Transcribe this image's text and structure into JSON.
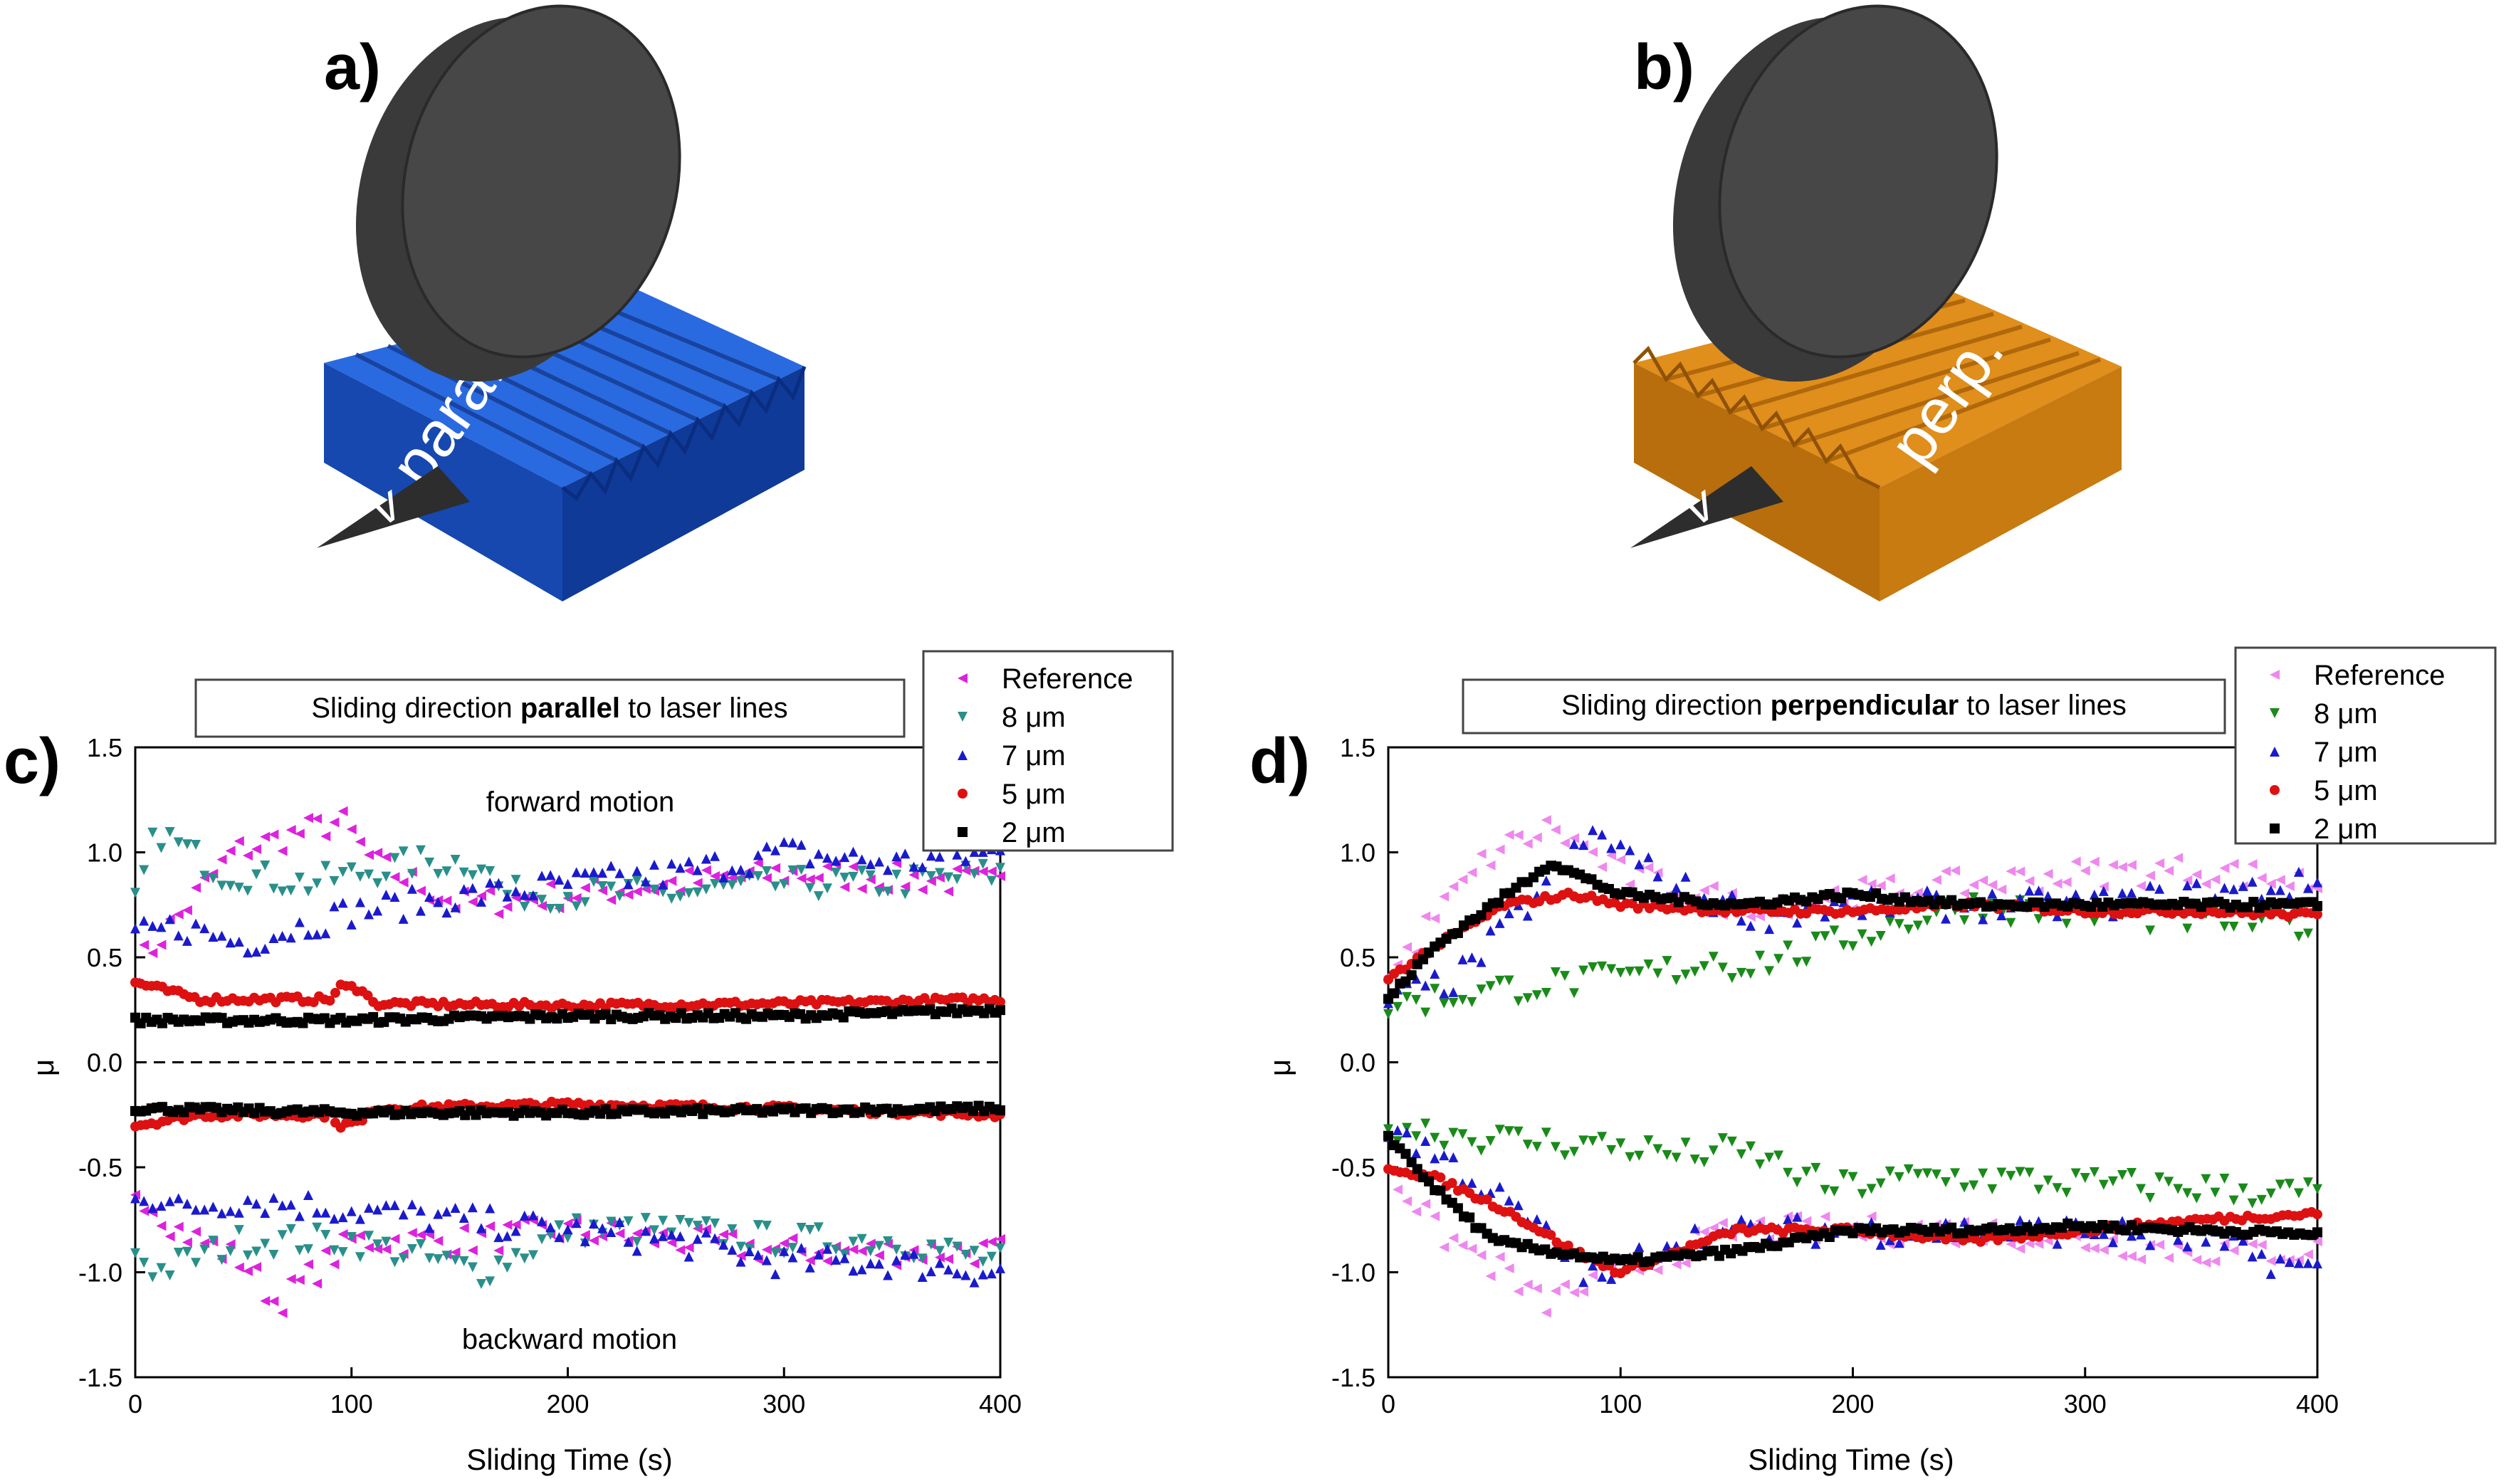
{
  "panels": {
    "a": {
      "letter": "a)",
      "sample_label": "para.",
      "surface_color": "#1f5fd0",
      "arrow_glyph": "v"
    },
    "b": {
      "letter": "b)",
      "sample_label": "perp.",
      "surface_color": "#d9840f",
      "arrow_glyph": "v"
    },
    "c": {
      "letter": "c)"
    },
    "d": {
      "letter": "d)"
    }
  },
  "colors": {
    "reference_c": "#dd22dd",
    "reference_d": "#ee88ee",
    "um8_c": "#2a8f8a",
    "um8_d": "#1a8a1a",
    "um7": "#1a1acc",
    "um5": "#dd1111",
    "um2": "#000000"
  },
  "chart_data": [
    {
      "id": "c",
      "type": "scatter",
      "title_parts": [
        "Sliding direction ",
        "parallel",
        " to laser lines"
      ],
      "xlabel": "Sliding Time (s)",
      "ylabel": "μ",
      "xlim": [
        0,
        400
      ],
      "ylim": [
        -1.5,
        1.5
      ],
      "xticks": [
        "0",
        "100",
        "200",
        "300",
        "400"
      ],
      "yticks": [
        "1.5",
        "1.0",
        "0.5",
        "0.0",
        "-0.5",
        "-1.0",
        "-1.5"
      ],
      "zero_line": "dashed",
      "annotations": [
        "forward motion",
        "backward motion"
      ],
      "legend": {
        "placement": "top-right outside",
        "entries": [
          "Reference",
          "8 μm",
          "7 μm",
          "5 μm",
          "2 μm"
        ]
      },
      "series": [
        {
          "name": "Reference",
          "marker": "triangle-left",
          "color_key": "reference_c",
          "x_end": [
            0,
            100,
            150,
            200,
            300,
            340,
            400
          ],
          "forward": [
            [
              0,
              0.45
            ],
            [
              20,
              0.7
            ],
            [
              45,
              1.0
            ],
            [
              95,
              1.15
            ],
            [
              110,
              0.95
            ],
            [
              150,
              0.75
            ],
            [
              200,
              0.8
            ],
            [
              250,
              0.85
            ],
            [
              300,
              0.9
            ],
            [
              350,
              0.88
            ],
            [
              400,
              0.85
            ]
          ],
          "backward": [
            [
              0,
              -0.6
            ],
            [
              20,
              -0.8
            ],
            [
              50,
              -0.95
            ],
            [
              65,
              -1.15
            ],
            [
              100,
              -0.85
            ],
            [
              150,
              -0.85
            ],
            [
              200,
              -0.8
            ],
            [
              250,
              -0.85
            ],
            [
              300,
              -0.9
            ],
            [
              350,
              -0.9
            ],
            [
              400,
              -0.9
            ]
          ]
        },
        {
          "name": "8 μm",
          "marker": "triangle-down",
          "color_key": "um8_c",
          "forward": [
            [
              0,
              0.75
            ],
            [
              10,
              1.1
            ],
            [
              40,
              0.9
            ],
            [
              80,
              0.85
            ],
            [
              130,
              0.95
            ],
            [
              160,
              0.95
            ],
            [
              170,
              0.8
            ],
            [
              250,
              0.8
            ],
            [
              300,
              0.85
            ],
            [
              350,
              0.85
            ],
            [
              400,
              0.9
            ]
          ],
          "backward": [
            [
              0,
              -0.9
            ],
            [
              10,
              -1.0
            ],
            [
              50,
              -0.85
            ],
            [
              100,
              -0.85
            ],
            [
              160,
              -1.0
            ],
            [
              200,
              -0.8
            ],
            [
              250,
              -0.8
            ],
            [
              300,
              -0.85
            ],
            [
              350,
              -0.85
            ],
            [
              400,
              -0.95
            ]
          ]
        },
        {
          "name": "7 μm",
          "marker": "triangle-up",
          "color_key": "um7",
          "forward": [
            [
              0,
              0.6
            ],
            [
              20,
              0.65
            ],
            [
              50,
              0.57
            ],
            [
              100,
              0.72
            ],
            [
              160,
              0.8
            ],
            [
              200,
              0.85
            ],
            [
              250,
              0.9
            ],
            [
              300,
              1.0
            ],
            [
              350,
              0.95
            ],
            [
              400,
              1.0
            ]
          ],
          "backward": [
            [
              0,
              -0.6
            ],
            [
              20,
              -0.7
            ],
            [
              50,
              -0.65
            ],
            [
              100,
              -0.7
            ],
            [
              150,
              -0.75
            ],
            [
              200,
              -0.8
            ],
            [
              250,
              -0.85
            ],
            [
              300,
              -0.95
            ],
            [
              350,
              -0.95
            ],
            [
              400,
              -1.0
            ]
          ]
        },
        {
          "name": "5 μm",
          "marker": "circle",
          "color_key": "um5",
          "forward": [
            [
              0,
              0.38
            ],
            [
              30,
              0.3
            ],
            [
              90,
              0.3
            ],
            [
              95,
              0.36
            ],
            [
              105,
              0.35
            ],
            [
              110,
              0.28
            ],
            [
              200,
              0.27
            ],
            [
              300,
              0.28
            ],
            [
              400,
              0.3
            ]
          ],
          "backward": [
            [
              0,
              -0.3
            ],
            [
              30,
              -0.25
            ],
            [
              90,
              -0.25
            ],
            [
              95,
              -0.3
            ],
            [
              105,
              -0.28
            ],
            [
              110,
              -0.22
            ],
            [
              200,
              -0.2
            ],
            [
              300,
              -0.22
            ],
            [
              400,
              -0.25
            ]
          ]
        },
        {
          "name": "2 μm",
          "marker": "square",
          "color_key": "um2",
          "forward": [
            [
              0,
              0.2
            ],
            [
              100,
              0.2
            ],
            [
              200,
              0.22
            ],
            [
              300,
              0.22
            ],
            [
              400,
              0.25
            ]
          ],
          "backward": [
            [
              0,
              -0.22
            ],
            [
              100,
              -0.24
            ],
            [
              200,
              -0.24
            ],
            [
              300,
              -0.23
            ],
            [
              400,
              -0.22
            ]
          ]
        }
      ]
    },
    {
      "id": "d",
      "type": "scatter",
      "title_parts": [
        "Sliding direction ",
        "perpendicular",
        " to laser lines"
      ],
      "xlabel": "Sliding Time (s)",
      "ylabel": "μ",
      "xlim": [
        0,
        400
      ],
      "ylim": [
        -1.5,
        1.5
      ],
      "xticks": [
        "0",
        "100",
        "200",
        "300",
        "400"
      ],
      "yticks": [
        "1.5",
        "1.0",
        "0.5",
        "0.0",
        "-0.5",
        "-1.0",
        "-1.5"
      ],
      "zero_line": "none",
      "annotations": [],
      "legend": {
        "placement": "top-right outside",
        "entries": [
          "Reference",
          "8 μm",
          "7 μm",
          "5 μm",
          "2 μm"
        ]
      },
      "series": [
        {
          "name": "Reference",
          "marker": "triangle-left",
          "color_key": "reference_d",
          "forward": [
            [
              0,
              0.4
            ],
            [
              20,
              0.7
            ],
            [
              45,
              1.0
            ],
            [
              70,
              1.12
            ],
            [
              100,
              0.9
            ],
            [
              150,
              0.75
            ],
            [
              200,
              0.8
            ],
            [
              250,
              0.85
            ],
            [
              300,
              0.9
            ],
            [
              350,
              0.92
            ],
            [
              400,
              0.85
            ]
          ],
          "backward": [
            [
              0,
              -0.5
            ],
            [
              20,
              -0.8
            ],
            [
              50,
              -1.0
            ],
            [
              65,
              -1.15
            ],
            [
              100,
              -1.0
            ],
            [
              150,
              -0.8
            ],
            [
              200,
              -0.8
            ],
            [
              250,
              -0.8
            ],
            [
              300,
              -0.85
            ],
            [
              350,
              -0.9
            ],
            [
              400,
              -0.9
            ]
          ]
        },
        {
          "name": "8 μm",
          "marker": "triangle-down",
          "color_key": "um8_d",
          "forward": [
            [
              0,
              0.27
            ],
            [
              50,
              0.35
            ],
            [
              100,
              0.4
            ],
            [
              130,
              0.45
            ],
            [
              140,
              0.5
            ],
            [
              150,
              0.45
            ],
            [
              190,
              0.55
            ],
            [
              200,
              0.6
            ],
            [
              250,
              0.75
            ],
            [
              300,
              0.7
            ],
            [
              350,
              0.68
            ],
            [
              400,
              0.65
            ]
          ],
          "backward": [
            [
              0,
              -0.3
            ],
            [
              50,
              -0.37
            ],
            [
              100,
              -0.4
            ],
            [
              130,
              -0.45
            ],
            [
              140,
              -0.42
            ],
            [
              160,
              -0.45
            ],
            [
              190,
              -0.6
            ],
            [
              230,
              -0.55
            ],
            [
              250,
              -0.55
            ],
            [
              300,
              -0.58
            ],
            [
              350,
              -0.6
            ],
            [
              400,
              -0.63
            ]
          ]
        },
        {
          "name": "7 μm",
          "marker": "triangle-up",
          "color_key": "um7",
          "forward": [
            [
              0,
              0.3
            ],
            [
              30,
              0.4
            ],
            [
              60,
              0.75
            ],
            [
              90,
              1.1
            ],
            [
              120,
              0.85
            ],
            [
              160,
              0.7
            ],
            [
              200,
              0.75
            ],
            [
              250,
              0.75
            ],
            [
              300,
              0.75
            ],
            [
              350,
              0.8
            ],
            [
              400,
              0.85
            ]
          ],
          "backward": [
            [
              0,
              -0.3
            ],
            [
              30,
              -0.5
            ],
            [
              60,
              -0.75
            ],
            [
              90,
              -1.05
            ],
            [
              120,
              -0.85
            ],
            [
              160,
              -0.8
            ],
            [
              200,
              -0.8
            ],
            [
              250,
              -0.8
            ],
            [
              300,
              -0.8
            ],
            [
              350,
              -0.85
            ],
            [
              400,
              -1.0
            ]
          ]
        },
        {
          "name": "5 μm",
          "marker": "circle",
          "color_key": "um5",
          "forward": [
            [
              0,
              0.4
            ],
            [
              20,
              0.55
            ],
            [
              50,
              0.75
            ],
            [
              80,
              0.8
            ],
            [
              100,
              0.75
            ],
            [
              150,
              0.72
            ],
            [
              200,
              0.72
            ],
            [
              250,
              0.75
            ],
            [
              300,
              0.72
            ],
            [
              350,
              0.72
            ],
            [
              400,
              0.7
            ]
          ],
          "backward": [
            [
              0,
              -0.5
            ],
            [
              20,
              -0.55
            ],
            [
              50,
              -0.7
            ],
            [
              80,
              -0.9
            ],
            [
              100,
              -1.0
            ],
            [
              150,
              -0.8
            ],
            [
              200,
              -0.8
            ],
            [
              250,
              -0.85
            ],
            [
              300,
              -0.8
            ],
            [
              350,
              -0.75
            ],
            [
              400,
              -0.72
            ]
          ]
        },
        {
          "name": "2 μm",
          "marker": "square",
          "color_key": "um2",
          "forward": [
            [
              0,
              0.3
            ],
            [
              20,
              0.55
            ],
            [
              45,
              0.75
            ],
            [
              70,
              0.95
            ],
            [
              100,
              0.8
            ],
            [
              150,
              0.75
            ],
            [
              200,
              0.8
            ],
            [
              250,
              0.75
            ],
            [
              300,
              0.75
            ],
            [
              350,
              0.75
            ],
            [
              400,
              0.75
            ]
          ],
          "backward": [
            [
              0,
              -0.35
            ],
            [
              20,
              -0.6
            ],
            [
              45,
              -0.85
            ],
            [
              70,
              -0.9
            ],
            [
              100,
              -0.95
            ],
            [
              150,
              -0.9
            ],
            [
              200,
              -0.8
            ],
            [
              250,
              -0.8
            ],
            [
              300,
              -0.78
            ],
            [
              350,
              -0.8
            ],
            [
              400,
              -0.82
            ]
          ]
        }
      ]
    }
  ]
}
